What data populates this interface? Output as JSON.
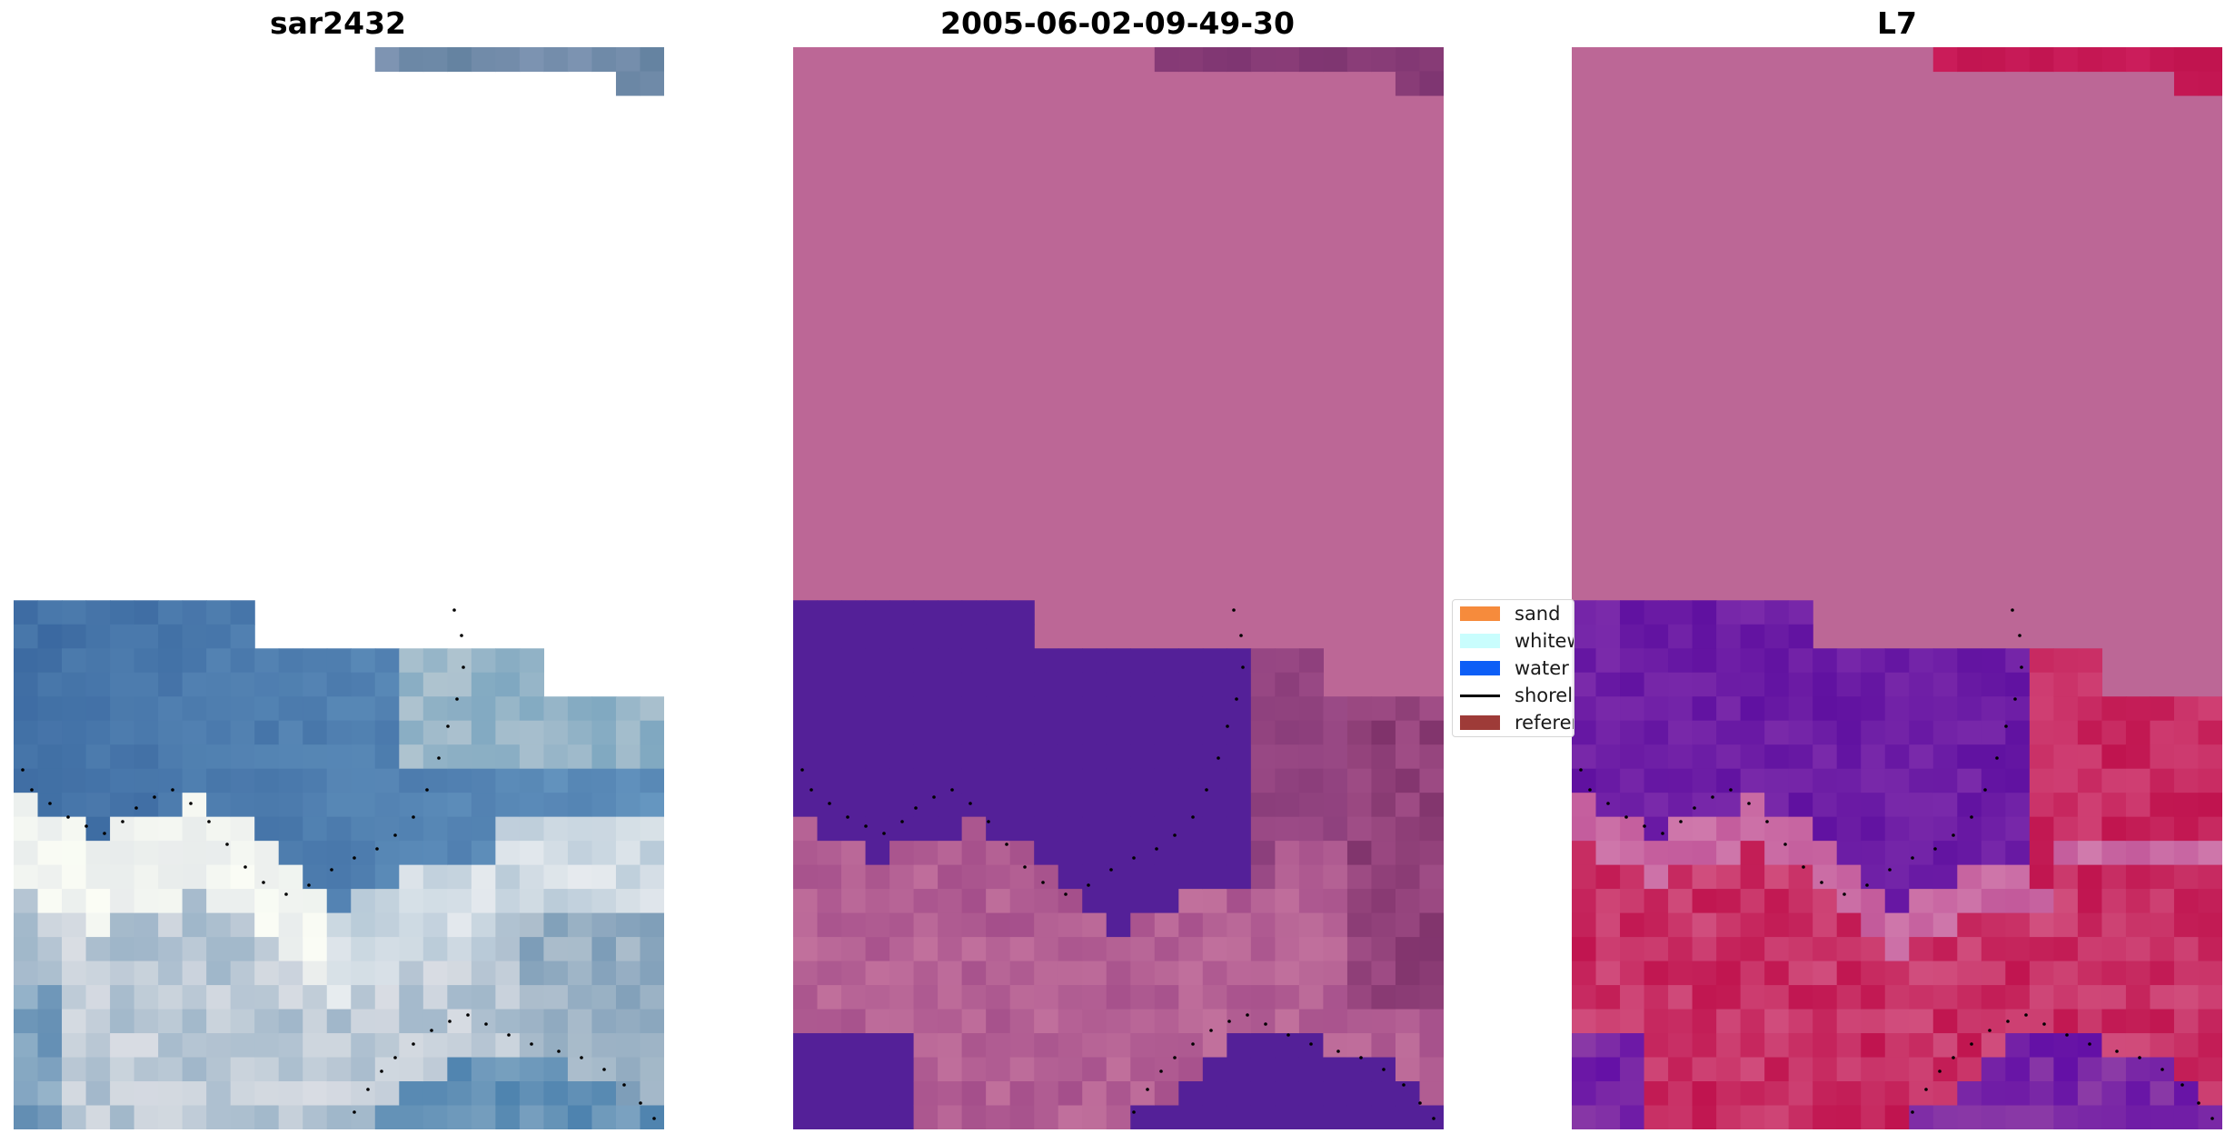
{
  "panels": [
    {
      "title": "sar2432"
    },
    {
      "title": "2005-06-02-09-49-30"
    },
    {
      "title": "L7"
    }
  ],
  "legend": {
    "items": [
      {
        "label": "sand",
        "color": "#f68b3c",
        "kind": "patch"
      },
      {
        "label": "whitew",
        "color": "#c9fdfd",
        "kind": "patch"
      },
      {
        "label": "water",
        "color": "#0d5ef6",
        "kind": "patch"
      },
      {
        "label": "shorel",
        "color": "#000000",
        "kind": "line"
      },
      {
        "label": "referen",
        "color": "#9e3b38",
        "kind": "patch"
      }
    ]
  },
  "colors": {
    "no_data_pink": "#bc6796",
    "water_overlay_purple": "#542098",
    "water_overlay_dark_magenta": "#7d3169",
    "l7_land_red": "#c0134e",
    "l7_water_violet": "#6b16a2",
    "rgb_ocean_blue": "#3c6fa0",
    "rgb_whitewater": "#e8eeee"
  }
}
